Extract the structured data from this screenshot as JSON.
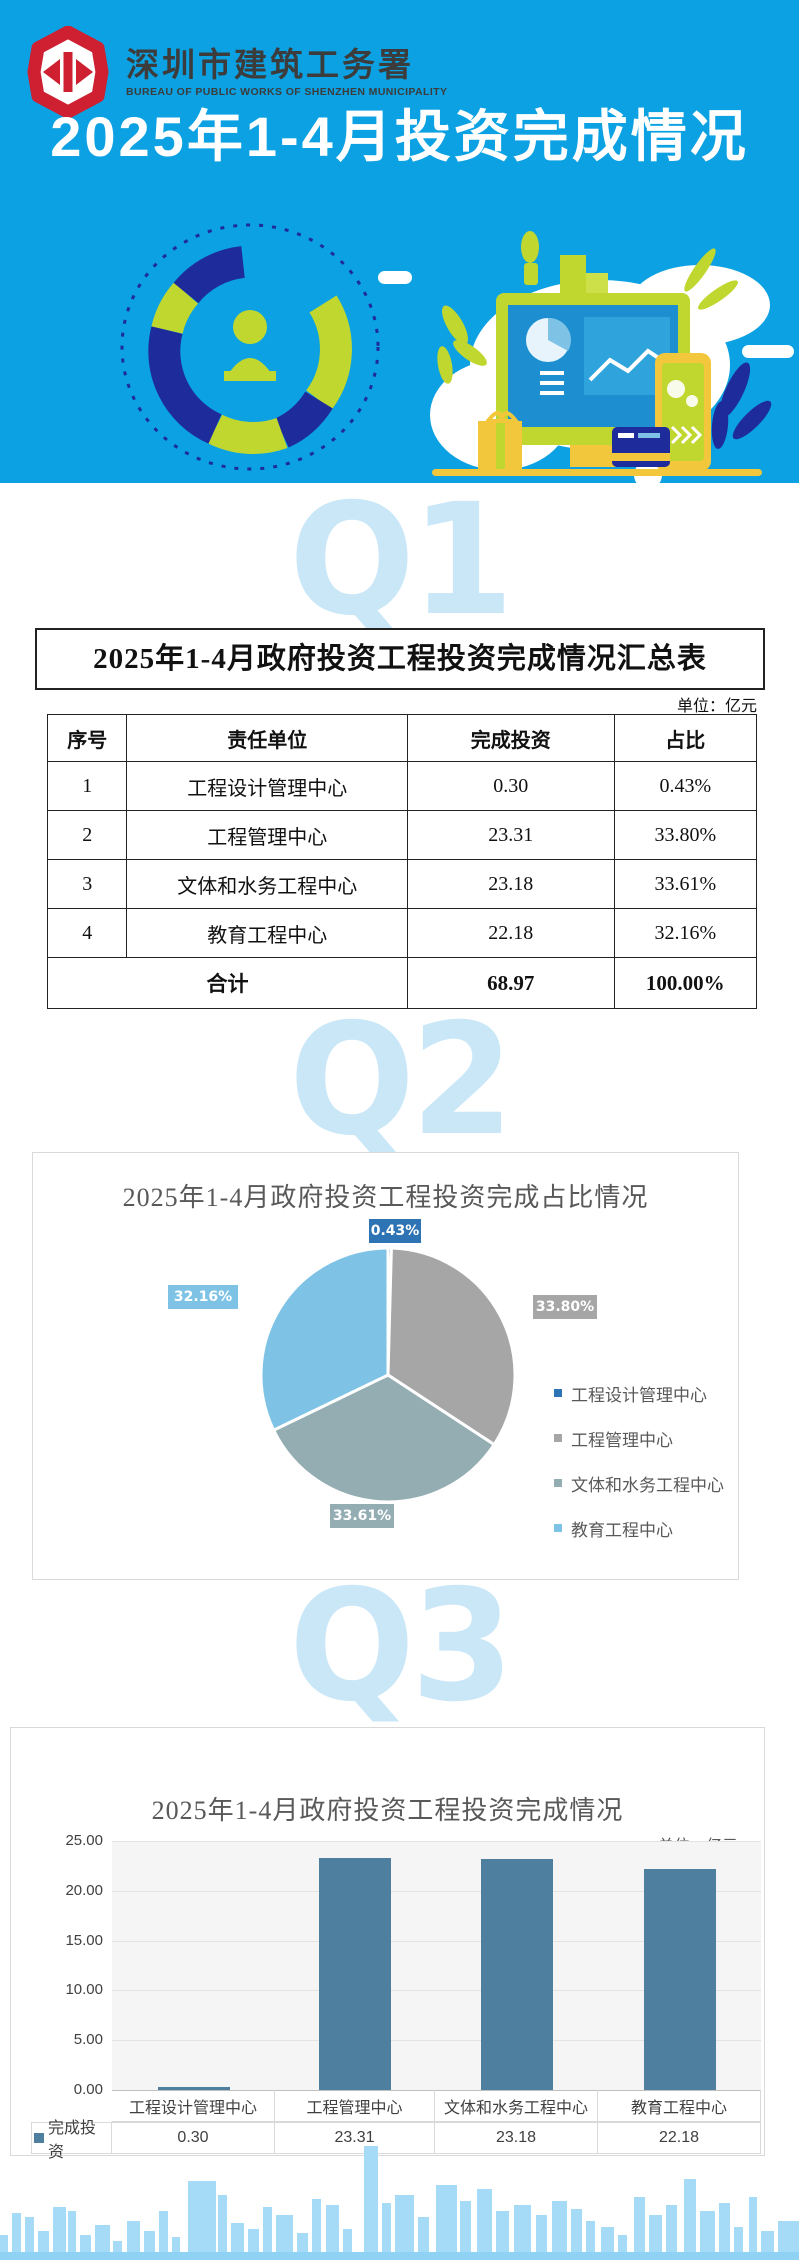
{
  "header": {
    "org_name_cn": "深圳市建筑工务署",
    "org_name_en": "BUREAU OF PUBLIC WORKS OF SHENZHEN MUNICIPALITY",
    "title": "2025年1-4月投资完成情况"
  },
  "watermarks": {
    "q1": "Q1",
    "q2": "Q2",
    "q3": "Q3"
  },
  "summary_table": {
    "title": "2025年1-4月政府投资工程投资完成情况汇总表",
    "unit_label": "单位：亿元",
    "columns": [
      "序号",
      "责任单位",
      "完成投资",
      "占比"
    ],
    "rows": [
      [
        "1",
        "工程设计管理中心",
        "0.30",
        "0.43%"
      ],
      [
        "2",
        "工程管理中心",
        "23.31",
        "33.80%"
      ],
      [
        "3",
        "文体和水务工程中心",
        "23.18",
        "33.61%"
      ],
      [
        "4",
        "教育工程中心",
        "22.18",
        "32.16%"
      ]
    ],
    "total_label": "合计",
    "total_investment": "68.97",
    "total_share": "100.00%"
  },
  "chart_data": [
    {
      "type": "pie",
      "title": "2025年1-4月政府投资工程投资完成占比情况",
      "labels": [
        "工程设计管理中心",
        "工程管理中心",
        "文体和水务工程中心",
        "教育工程中心"
      ],
      "values": [
        0.43,
        33.8,
        33.61,
        32.16
      ],
      "value_labels": [
        "0.43%",
        "33.80%",
        "33.61%",
        "32.16%"
      ],
      "colors": [
        "#2E74B5",
        "#A6A6A6",
        "#93ADB3",
        "#7EC3E6"
      ],
      "legend_position": "right"
    },
    {
      "type": "bar",
      "title": "2025年1-4月政府投资工程投资完成情况",
      "unit_label": "单位：亿元",
      "series_name": "完成投资",
      "categories": [
        "工程设计管理中心",
        "工程管理中心",
        "文体和水务工程中心",
        "教育工程中心"
      ],
      "values": [
        0.3,
        23.31,
        23.18,
        22.18
      ],
      "value_labels": [
        "0.30",
        "23.31",
        "23.18",
        "22.18"
      ],
      "ylim": [
        0,
        25
      ],
      "yticks": [
        "25.00",
        "20.00",
        "15.00",
        "10.00",
        "5.00",
        "0.00"
      ],
      "bar_color": "#4E7F9F",
      "grid": true
    }
  ],
  "colors": {
    "header_bg": "#0BA1E2",
    "logo_red": "#CE2030",
    "watermark_blue": "#C9E7F7",
    "illustration_navy": "#1E2B9B",
    "illustration_lime": "#BFD72F",
    "illustration_yellow": "#F3C73B",
    "skyline_blue": "#A5DBF6"
  }
}
